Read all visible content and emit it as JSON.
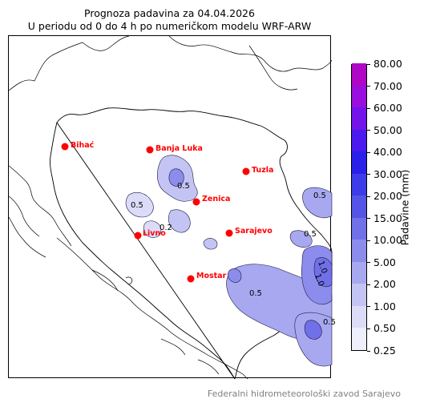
{
  "title_line1": "Prognoza padavina za 04.04.2026",
  "title_line2": "U periodu od 0 do 4 h po numeričkom modelu WRF-ARW",
  "colorbar": {
    "label": "Padavine (mm)",
    "levels": [
      "0.25",
      "0.50",
      "1.00",
      "2.00",
      "5.00",
      "10.00",
      "15.00",
      "20.00",
      "30.00",
      "40.00",
      "50.00",
      "60.00",
      "70.00",
      "80.00"
    ],
    "colors": [
      "#efeffb",
      "#dcdcf8",
      "#c4c4f4",
      "#a8a8f0",
      "#8c8cec",
      "#7070e8",
      "#5454e6",
      "#3c3ce8",
      "#2a20ea",
      "#4a1aee",
      "#7214ea",
      "#9a0ede",
      "#b007c6"
    ]
  },
  "cities": [
    {
      "name": "Bihać"
    },
    {
      "name": "Banja Luka"
    },
    {
      "name": "Tuzla"
    },
    {
      "name": "Zenica"
    },
    {
      "name": "Livno"
    },
    {
      "name": "Sarajevo"
    },
    {
      "name": "Mostar"
    }
  ],
  "contour_labels": [
    "0.5",
    "0.2",
    "0.5",
    "0.5",
    "0.5",
    "0.5",
    "1.0",
    "1.0",
    "0.5"
  ],
  "footer": "Federalni hidrometeorološki zavod Sarajevo"
}
